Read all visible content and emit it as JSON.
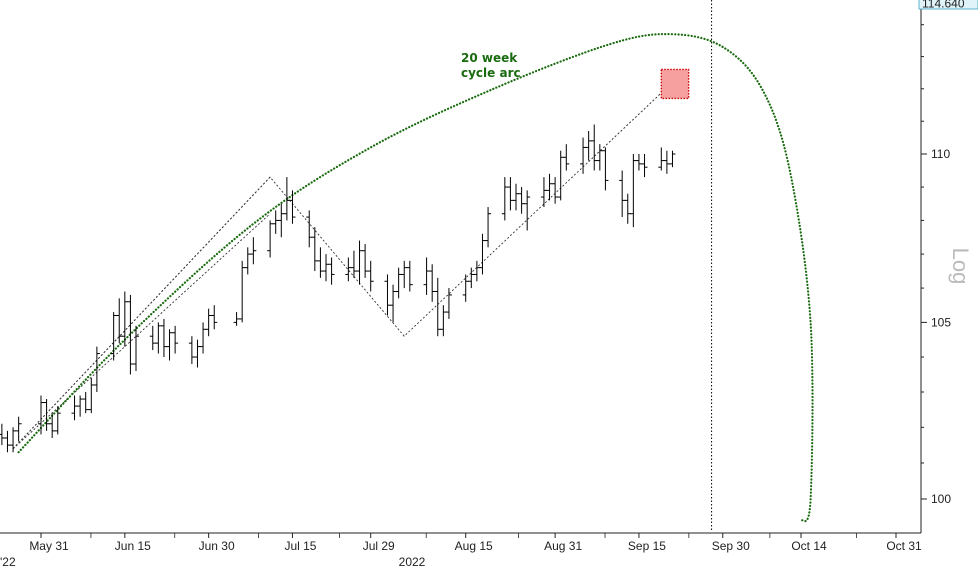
{
  "chart_data": {
    "type": "ohlc",
    "scale": "log",
    "ylabel": "Log",
    "year_label": "2022",
    "ylim": [
      99.1,
      114.64
    ],
    "yticks": [
      100,
      105,
      110
    ],
    "last_price_label": "114.640",
    "first_date_fragment": "'22",
    "x_categories": [
      "May 31",
      "Jun 15",
      "Jun 30",
      "Jul 15",
      "Jul 29",
      "Aug 15",
      "Aug 31",
      "Sep 15",
      "Sep 30",
      "Oct 14",
      "Oct 31"
    ],
    "annotation": {
      "lines": [
        "20 week",
        "cycle arc"
      ],
      "color": "#1a6b0f"
    },
    "target_box": {
      "from": "Sep 19",
      "to": "Sep 23",
      "low": 111.7,
      "high": 112.6,
      "fill": "#f6a0a0",
      "border": "#cc0000"
    },
    "marker_line_date": "Sep 28",
    "channel": [
      {
        "date": "May 26",
        "value": 101.4
      },
      {
        "date": "Jul 11",
        "value": 109.3
      },
      {
        "date": "Aug 4",
        "value": 104.6
      },
      {
        "date": "Sep 21",
        "value": 112.2
      }
    ],
    "channel_upper": [
      {
        "date": "May 26",
        "value": 101.4
      },
      {
        "date": "Jul 11",
        "value": 109.3
      }
    ],
    "channel_lower": [
      {
        "date": "May 26",
        "value": 101.4
      },
      {
        "date": "Jul 11",
        "value": 108.2
      }
    ],
    "cycle_arc": [
      {
        "date": "May 27",
        "value": 101.3
      },
      {
        "date": "Jun 15",
        "value": 104.5
      },
      {
        "date": "Jul 8",
        "value": 107.9
      },
      {
        "date": "Jul 29",
        "value": 110.2
      },
      {
        "date": "Aug 20",
        "value": 112.0
      },
      {
        "date": "Sep 10",
        "value": 113.4
      },
      {
        "date": "Sep 21",
        "value": 113.7
      },
      {
        "date": "Sep 30",
        "value": 113.3
      },
      {
        "date": "Oct 7",
        "value": 112.0
      },
      {
        "date": "Oct 12",
        "value": 109.5
      },
      {
        "date": "Oct 15",
        "value": 105.0
      },
      {
        "date": "Oct 15",
        "value": 100.0
      },
      {
        "date": "Oct 14",
        "value": 99.4
      }
    ],
    "series": [
      {
        "name": "",
        "values": [
          {
            "date": "May 17",
            "open": 102.9,
            "high": 103.3,
            "low": 102.1,
            "close": 102.6
          },
          {
            "date": "May 18",
            "open": 102.6,
            "high": 102.8,
            "low": 101.9,
            "close": 102.1
          },
          {
            "date": "May 19",
            "open": 102.1,
            "high": 102.5,
            "low": 101.8,
            "close": 102.3
          },
          {
            "date": "May 20",
            "open": 102.3,
            "high": 102.6,
            "low": 101.9,
            "close": 102.0
          },
          {
            "date": "May 23",
            "open": 102.0,
            "high": 102.2,
            "low": 101.6,
            "close": 101.8
          },
          {
            "date": "May 24",
            "open": 101.8,
            "high": 102.1,
            "low": 101.5,
            "close": 101.7
          },
          {
            "date": "May 25",
            "open": 101.7,
            "high": 101.9,
            "low": 101.3,
            "close": 101.5
          },
          {
            "date": "May 26",
            "open": 101.5,
            "high": 102.0,
            "low": 101.3,
            "close": 101.9
          },
          {
            "date": "May 27",
            "open": 101.9,
            "high": 102.3,
            "low": 101.6,
            "close": 102.1
          },
          {
            "date": "May 31",
            "open": 102.1,
            "high": 102.9,
            "low": 101.8,
            "close": 102.7
          },
          {
            "date": "Jun 1",
            "open": 102.7,
            "high": 102.8,
            "low": 101.9,
            "close": 102.1
          },
          {
            "date": "Jun 2",
            "open": 102.1,
            "high": 102.4,
            "low": 101.7,
            "close": 101.9
          },
          {
            "date": "Jun 3",
            "open": 101.9,
            "high": 102.6,
            "low": 101.8,
            "close": 102.4
          },
          {
            "date": "Jun 6",
            "open": 102.4,
            "high": 102.9,
            "low": 102.2,
            "close": 102.6
          },
          {
            "date": "Jun 7",
            "open": 102.6,
            "high": 102.9,
            "low": 102.3,
            "close": 102.8
          },
          {
            "date": "Jun 8",
            "open": 102.8,
            "high": 103.0,
            "low": 102.4,
            "close": 102.5
          },
          {
            "date": "Jun 9",
            "open": 102.5,
            "high": 103.4,
            "low": 102.4,
            "close": 103.2
          },
          {
            "date": "Jun 10",
            "open": 103.2,
            "high": 104.3,
            "low": 103.0,
            "close": 104.1
          },
          {
            "date": "Jun 13",
            "open": 104.1,
            "high": 105.3,
            "low": 103.9,
            "close": 105.2
          },
          {
            "date": "Jun 14",
            "open": 105.2,
            "high": 105.7,
            "low": 104.4,
            "close": 104.6
          },
          {
            "date": "Jun 15",
            "open": 104.6,
            "high": 105.9,
            "low": 104.3,
            "close": 105.6
          },
          {
            "date": "Jun 16",
            "open": 105.6,
            "high": 105.8,
            "low": 103.5,
            "close": 103.8
          },
          {
            "date": "Jun 17",
            "open": 103.8,
            "high": 104.9,
            "low": 103.6,
            "close": 104.6
          },
          {
            "date": "Jun 20",
            "open": 104.6,
            "high": 104.9,
            "low": 104.2,
            "close": 104.4
          },
          {
            "date": "Jun 21",
            "open": 104.4,
            "high": 105.0,
            "low": 104.1,
            "close": 104.9
          },
          {
            "date": "Jun 22",
            "open": 104.9,
            "high": 105.1,
            "low": 104.0,
            "close": 104.3
          },
          {
            "date": "Jun 23",
            "open": 104.3,
            "high": 104.8,
            "low": 103.9,
            "close": 104.7
          },
          {
            "date": "Jun 24",
            "open": 104.7,
            "high": 104.9,
            "low": 104.1,
            "close": 104.4
          },
          {
            "date": "Jun 27",
            "open": 104.4,
            "high": 104.6,
            "low": 103.8,
            "close": 104.0
          },
          {
            "date": "Jun 28",
            "open": 104.0,
            "high": 104.5,
            "low": 103.7,
            "close": 104.3
          },
          {
            "date": "Jun 29",
            "open": 104.3,
            "high": 105.0,
            "low": 104.1,
            "close": 104.8
          },
          {
            "date": "Jun 30",
            "open": 104.8,
            "high": 105.4,
            "low": 104.6,
            "close": 105.2
          },
          {
            "date": "Jul 1",
            "open": 105.2,
            "high": 105.5,
            "low": 104.8,
            "close": 105.0
          },
          {
            "date": "Jul 5",
            "open": 105.0,
            "high": 105.3,
            "low": 104.9,
            "close": 105.1
          },
          {
            "date": "Jul 6",
            "open": 105.1,
            "high": 106.8,
            "low": 105.0,
            "close": 106.6
          },
          {
            "date": "Jul 7",
            "open": 106.6,
            "high": 107.2,
            "low": 106.4,
            "close": 107.0
          },
          {
            "date": "Jul 8",
            "open": 107.0,
            "high": 107.5,
            "low": 106.7,
            "close": 107.1
          },
          {
            "date": "Jul 11",
            "open": 107.1,
            "high": 108.0,
            "low": 106.9,
            "close": 107.9
          },
          {
            "date": "Jul 12",
            "open": 107.9,
            "high": 108.3,
            "low": 107.6,
            "close": 108.0
          },
          {
            "date": "Jul 13",
            "open": 108.0,
            "high": 108.5,
            "low": 107.5,
            "close": 108.2
          },
          {
            "date": "Jul 14",
            "open": 108.2,
            "high": 109.3,
            "low": 108.0,
            "close": 108.6
          },
          {
            "date": "Jul 15",
            "open": 108.6,
            "high": 108.9,
            "low": 107.9,
            "close": 108.1
          },
          {
            "date": "Jul 18",
            "open": 108.1,
            "high": 108.3,
            "low": 107.2,
            "close": 107.5
          },
          {
            "date": "Jul 19",
            "open": 107.5,
            "high": 107.8,
            "low": 106.5,
            "close": 106.8
          },
          {
            "date": "Jul 20",
            "open": 106.8,
            "high": 107.2,
            "low": 106.3,
            "close": 106.5
          },
          {
            "date": "Jul 21",
            "open": 106.5,
            "high": 107.0,
            "low": 106.2,
            "close": 106.7
          },
          {
            "date": "Jul 22",
            "open": 106.7,
            "high": 106.9,
            "low": 106.1,
            "close": 106.4
          },
          {
            "date": "Jul 25",
            "open": 106.4,
            "high": 106.9,
            "low": 106.2,
            "close": 106.6
          },
          {
            "date": "Jul 26",
            "open": 106.6,
            "high": 107.1,
            "low": 106.3,
            "close": 106.5
          },
          {
            "date": "Jul 27",
            "open": 106.5,
            "high": 107.4,
            "low": 106.1,
            "close": 107.1
          },
          {
            "date": "Jul 28",
            "open": 107.1,
            "high": 107.3,
            "low": 106.3,
            "close": 106.5
          },
          {
            "date": "Jul 29",
            "open": 106.5,
            "high": 106.8,
            "low": 105.9,
            "close": 106.2
          },
          {
            "date": "Aug 1",
            "open": 106.2,
            "high": 106.4,
            "low": 105.2,
            "close": 105.5
          },
          {
            "date": "Aug 2",
            "open": 105.5,
            "high": 106.1,
            "low": 105.0,
            "close": 105.9
          },
          {
            "date": "Aug 3",
            "open": 105.9,
            "high": 106.6,
            "low": 105.7,
            "close": 106.4
          },
          {
            "date": "Aug 4",
            "open": 106.4,
            "high": 106.8,
            "low": 106.0,
            "close": 106.6
          },
          {
            "date": "Aug 5",
            "open": 106.6,
            "high": 106.8,
            "low": 105.9,
            "close": 106.1
          },
          {
            "date": "Aug 8",
            "open": 106.1,
            "high": 106.9,
            "low": 105.8,
            "close": 106.5
          },
          {
            "date": "Aug 9",
            "open": 106.5,
            "high": 106.7,
            "low": 105.6,
            "close": 105.9
          },
          {
            "date": "Aug 10",
            "open": 105.9,
            "high": 106.3,
            "low": 104.6,
            "close": 104.8
          },
          {
            "date": "Aug 11",
            "open": 104.8,
            "high": 105.5,
            "low": 104.6,
            "close": 105.3
          },
          {
            "date": "Aug 12",
            "open": 105.3,
            "high": 106.0,
            "low": 105.1,
            "close": 105.8
          },
          {
            "date": "Aug 15",
            "open": 105.8,
            "high": 106.4,
            "low": 105.6,
            "close": 106.2
          },
          {
            "date": "Aug 16",
            "open": 106.2,
            "high": 106.6,
            "low": 106.0,
            "close": 106.4
          },
          {
            "date": "Aug 17",
            "open": 106.4,
            "high": 106.8,
            "low": 106.2,
            "close": 106.6
          },
          {
            "date": "Aug 18",
            "open": 106.6,
            "high": 107.6,
            "low": 106.4,
            "close": 107.4
          },
          {
            "date": "Aug 19",
            "open": 107.4,
            "high": 108.4,
            "low": 107.2,
            "close": 108.2
          },
          {
            "date": "Aug 22",
            "open": 108.2,
            "high": 109.3,
            "low": 108.0,
            "close": 109.0
          },
          {
            "date": "Aug 23",
            "open": 109.0,
            "high": 109.3,
            "low": 108.3,
            "close": 108.6
          },
          {
            "date": "Aug 24",
            "open": 108.6,
            "high": 109.1,
            "low": 108.3,
            "close": 108.8
          },
          {
            "date": "Aug 25",
            "open": 108.8,
            "high": 109.0,
            "low": 108.2,
            "close": 108.5
          },
          {
            "date": "Aug 26",
            "open": 108.5,
            "high": 108.9,
            "low": 107.7,
            "close": 108.7
          },
          {
            "date": "Aug 29",
            "open": 108.7,
            "high": 109.3,
            "low": 108.4,
            "close": 108.9
          },
          {
            "date": "Aug 30",
            "open": 108.9,
            "high": 109.4,
            "low": 108.6,
            "close": 109.1
          },
          {
            "date": "Aug 31",
            "open": 109.1,
            "high": 109.3,
            "low": 108.5,
            "close": 108.7
          },
          {
            "date": "Sep 1",
            "open": 108.7,
            "high": 110.1,
            "low": 108.6,
            "close": 109.9
          },
          {
            "date": "Sep 2",
            "open": 109.9,
            "high": 110.3,
            "low": 109.5,
            "close": 109.7
          },
          {
            "date": "Sep 5",
            "open": 109.7,
            "high": 110.5,
            "low": 109.4,
            "close": 110.2
          },
          {
            "date": "Sep 6",
            "open": 110.2,
            "high": 110.7,
            "low": 109.8,
            "close": 110.4
          },
          {
            "date": "Sep 7",
            "open": 110.4,
            "high": 110.9,
            "low": 109.5,
            "close": 109.8
          },
          {
            "date": "Sep 8",
            "open": 109.8,
            "high": 110.3,
            "low": 109.5,
            "close": 110.1
          },
          {
            "date": "Sep 9",
            "open": 110.1,
            "high": 110.2,
            "low": 108.9,
            "close": 109.2
          },
          {
            "date": "Sep 12",
            "open": 109.2,
            "high": 109.5,
            "low": 108.1,
            "close": 108.6
          },
          {
            "date": "Sep 13",
            "open": 108.6,
            "high": 108.8,
            "low": 107.9,
            "close": 108.2
          },
          {
            "date": "Sep 14",
            "open": 108.2,
            "high": 110.0,
            "low": 107.8,
            "close": 109.8
          },
          {
            "date": "Sep 15",
            "open": 109.8,
            "high": 110.0,
            "low": 109.5,
            "close": 109.7
          },
          {
            "date": "Sep 16",
            "open": 109.7,
            "high": 110.0,
            "low": 109.3,
            "close": 109.6
          },
          {
            "date": "Sep 19",
            "open": 109.6,
            "high": 110.2,
            "low": 109.5,
            "close": 109.8
          },
          {
            "date": "Sep 20",
            "open": 109.8,
            "high": 110.1,
            "low": 109.4,
            "close": 109.7
          },
          {
            "date": "Sep 21",
            "open": 109.7,
            "high": 110.1,
            "low": 109.6,
            "close": 110.0
          }
        ]
      }
    ]
  }
}
